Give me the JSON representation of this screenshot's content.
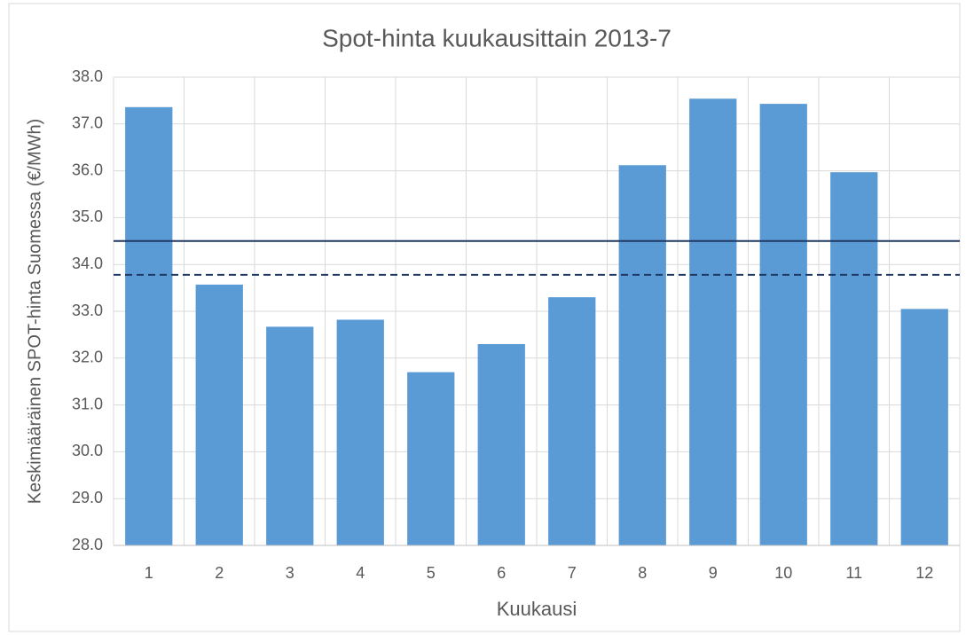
{
  "chart_data": {
    "type": "bar",
    "title": "Spot-hinta kuukausittain 2013-7",
    "x_label": "Kuukausi",
    "y_label": "Keskimääräinen SPOT-hinta Suomessa (€/MWh)",
    "categories": [
      "1",
      "2",
      "3",
      "4",
      "5",
      "6",
      "7",
      "8",
      "9",
      "10",
      "11",
      "12"
    ],
    "values": [
      37.36,
      33.57,
      32.67,
      32.82,
      31.7,
      32.3,
      33.3,
      36.12,
      37.54,
      37.43,
      35.97,
      33.05
    ],
    "color": "#5b9bd5",
    "ylim": [
      28,
      38
    ],
    "yticks": [
      {
        "value": 28,
        "label": "28.0"
      },
      {
        "value": 29,
        "label": "29.0"
      },
      {
        "value": 30,
        "label": "30.0"
      },
      {
        "value": 31,
        "label": "31.0"
      },
      {
        "value": 32,
        "label": "32.0"
      },
      {
        "value": 33,
        "label": "33.0"
      },
      {
        "value": 34,
        "label": "34.0"
      },
      {
        "value": 35,
        "label": "35.0"
      },
      {
        "value": 36,
        "label": "36.0"
      },
      {
        "value": 37,
        "label": "37.0"
      },
      {
        "value": 38,
        "label": "38.0"
      }
    ],
    "grid": true,
    "reference_lines": [
      {
        "value": 34.5,
        "color": "#1f3864",
        "style": "solid"
      },
      {
        "value": 33.78,
        "color": "#1f3864",
        "style": "dashed"
      }
    ]
  }
}
